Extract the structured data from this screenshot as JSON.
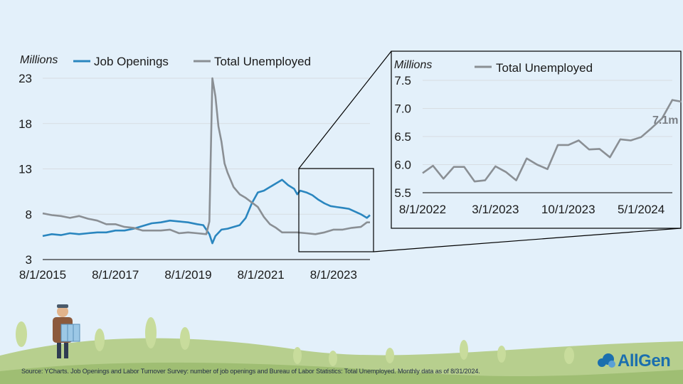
{
  "colors": {
    "job_openings": "#2a86bf",
    "unemployed": "#8a8f94",
    "background": "#e3f0fa",
    "brand": "#1b6fae"
  },
  "chart_data": [
    {
      "type": "line",
      "ylabel": "Millions",
      "legend_position": "top",
      "x_ticks": [
        "8/1/2015",
        "8/1/2017",
        "8/1/2019",
        "8/1/2021",
        "8/1/2023"
      ],
      "y_ticks": [
        3,
        8,
        13,
        18,
        23
      ],
      "ylim": [
        3,
        23
      ],
      "grid": "horizontal",
      "series": [
        {
          "name": "Job Openings",
          "x": [
            "2015-08",
            "2015-11",
            "2016-02",
            "2016-05",
            "2016-08",
            "2016-11",
            "2017-02",
            "2017-05",
            "2017-08",
            "2017-11",
            "2018-02",
            "2018-05",
            "2018-08",
            "2018-11",
            "2019-02",
            "2019-05",
            "2019-08",
            "2019-11",
            "2020-01",
            "2020-03",
            "2020-04",
            "2020-05",
            "2020-07",
            "2020-09",
            "2020-11",
            "2021-01",
            "2021-03",
            "2021-05",
            "2021-07",
            "2021-09",
            "2021-11",
            "2022-01",
            "2022-03",
            "2022-05",
            "2022-07",
            "2022-08",
            "2022-09",
            "2022-11",
            "2023-01",
            "2023-03",
            "2023-05",
            "2023-07",
            "2023-09",
            "2023-11",
            "2024-01",
            "2024-03",
            "2024-05",
            "2024-07",
            "2024-08"
          ],
          "values": [
            5.6,
            5.8,
            5.7,
            5.9,
            5.8,
            5.9,
            6.0,
            6.0,
            6.2,
            6.2,
            6.4,
            6.7,
            7.0,
            7.1,
            7.3,
            7.2,
            7.1,
            6.9,
            6.8,
            5.8,
            4.8,
            5.6,
            6.3,
            6.4,
            6.6,
            6.8,
            7.6,
            9.2,
            10.4,
            10.6,
            11.0,
            11.4,
            11.8,
            11.2,
            10.8,
            10.2,
            10.6,
            10.4,
            10.1,
            9.6,
            9.2,
            8.9,
            8.8,
            8.7,
            8.6,
            8.3,
            8.0,
            7.6,
            7.9
          ]
        },
        {
          "name": "Total Unemployed",
          "x": [
            "2015-08",
            "2015-11",
            "2016-02",
            "2016-05",
            "2016-08",
            "2016-11",
            "2017-02",
            "2017-05",
            "2017-08",
            "2017-11",
            "2018-02",
            "2018-05",
            "2018-08",
            "2018-11",
            "2019-02",
            "2019-05",
            "2019-08",
            "2019-11",
            "2020-02",
            "2020-03",
            "2020-04",
            "2020-05",
            "2020-06",
            "2020-07",
            "2020-08",
            "2020-09",
            "2020-11",
            "2021-01",
            "2021-03",
            "2021-05",
            "2021-07",
            "2021-09",
            "2021-11",
            "2022-01",
            "2022-03",
            "2022-05",
            "2022-08",
            "2022-11",
            "2023-02",
            "2023-05",
            "2023-08",
            "2023-11",
            "2024-02",
            "2024-05",
            "2024-07",
            "2024-08"
          ],
          "values": [
            8.1,
            7.9,
            7.8,
            7.6,
            7.8,
            7.5,
            7.3,
            6.9,
            6.9,
            6.6,
            6.5,
            6.2,
            6.2,
            6.2,
            6.3,
            5.9,
            6.0,
            5.9,
            5.8,
            7.2,
            23.0,
            21.0,
            17.7,
            16.0,
            13.6,
            12.6,
            11.0,
            10.2,
            9.8,
            9.3,
            8.8,
            7.7,
            6.9,
            6.5,
            6.0,
            6.0,
            6.0,
            5.9,
            5.8,
            6.0,
            6.3,
            6.3,
            6.5,
            6.6,
            7.1,
            7.1
          ]
        }
      ]
    },
    {
      "type": "line",
      "ylabel": "Millions",
      "legend_position": "top",
      "x_ticks": [
        "8/1/2022",
        "3/1/2023",
        "10/1/2023",
        "5/1/2024"
      ],
      "y_ticks": [
        "5.5",
        "6.0",
        "6.5",
        "7.0",
        "7.5"
      ],
      "ylim": [
        5.5,
        7.5
      ],
      "grid": "horizontal",
      "annotation": "7.1m",
      "series": [
        {
          "name": "Total Unemployed",
          "x": [
            "2022-08",
            "2022-09",
            "2022-10",
            "2022-11",
            "2022-12",
            "2023-01",
            "2023-02",
            "2023-03",
            "2023-04",
            "2023-05",
            "2023-06",
            "2023-07",
            "2023-08",
            "2023-09",
            "2023-10",
            "2023-11",
            "2023-12",
            "2024-01",
            "2024-02",
            "2024-03",
            "2024-04",
            "2024-05",
            "2024-06",
            "2024-07",
            "2024-08"
          ],
          "values": [
            5.85,
            5.98,
            5.75,
            5.96,
            5.96,
            5.7,
            5.72,
            5.97,
            5.87,
            5.72,
            6.11,
            6.0,
            5.92,
            6.35,
            6.35,
            6.43,
            6.27,
            6.28,
            6.13,
            6.45,
            6.43,
            6.49,
            6.65,
            6.82,
            7.15
          ]
        }
      ]
    }
  ],
  "source": "Source: YCharts. Job Openings and Labor Turnover Survey: number of job openings and Bureau of Labor Statistics: Total Unemployed. Monthly data as of 8/31/2024.",
  "brand": {
    "name": "AllGen",
    "icon": "cloud-logo-icon"
  }
}
